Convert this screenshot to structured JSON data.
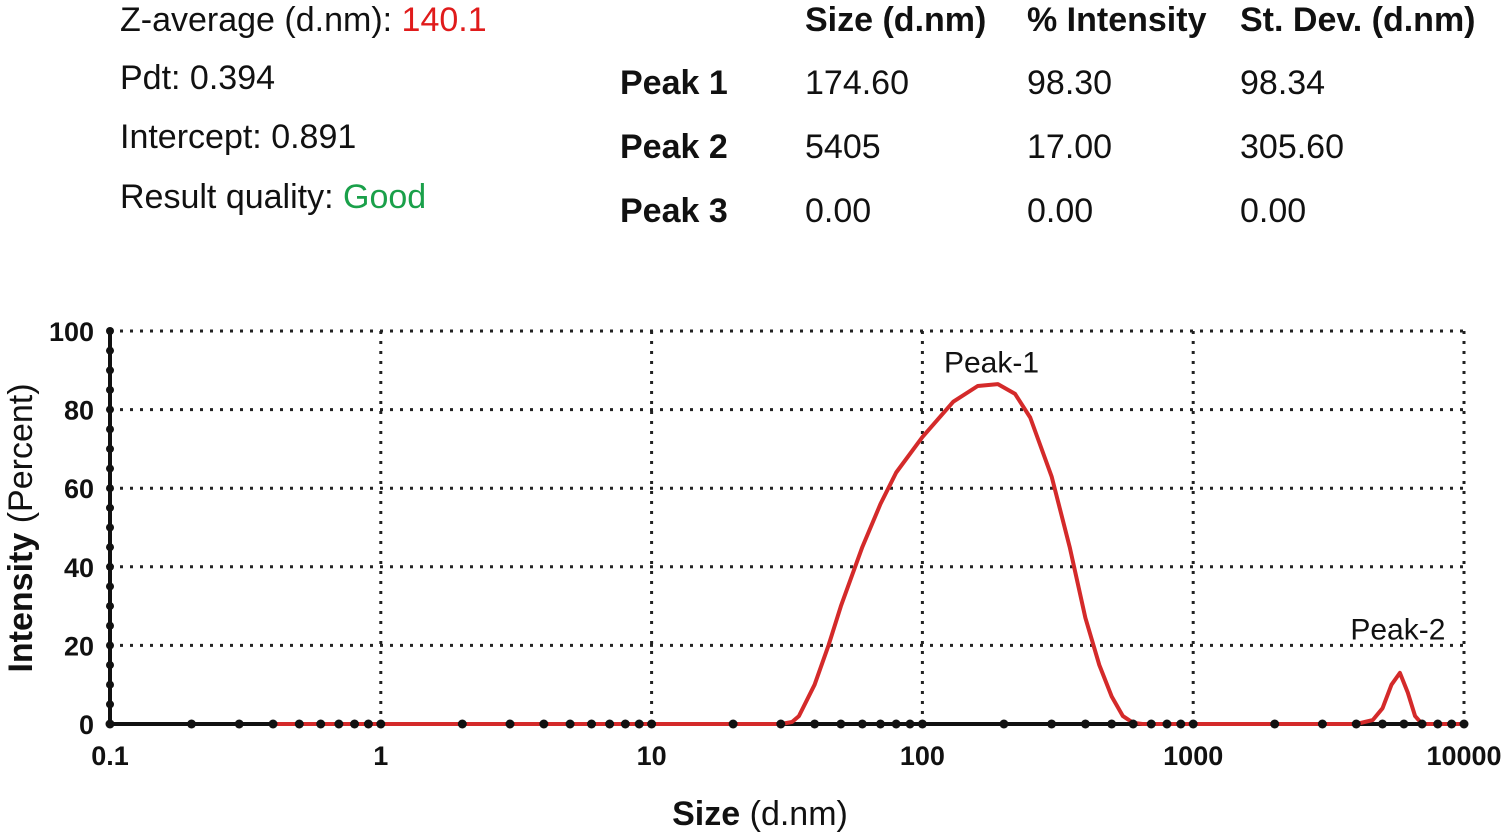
{
  "summary": {
    "z_average_label": "Z-average (d.nm): ",
    "z_average_value": "140.1",
    "pdi": "Pdt: 0.394",
    "intercept": "Intercept: 0.891",
    "quality_label": "Result quality: ",
    "quality_value": "Good"
  },
  "peak_table": {
    "headers": [
      "Size (d.nm)",
      "% Intensity",
      "St. Dev. (d.nm)"
    ],
    "rows": [
      {
        "label": "Peak 1",
        "size": "174.60",
        "intensity": "98.30",
        "stdev": "98.34"
      },
      {
        "label": "Peak 2",
        "size": "5405",
        "intensity": "17.00",
        "stdev": "305.60"
      },
      {
        "label": "Peak 3",
        "size": "0.00",
        "intensity": "0.00",
        "stdev": "0.00"
      }
    ]
  },
  "colors": {
    "value_red": "#e01b1b",
    "good_green": "#1aa04a",
    "curve": "#d42a2a",
    "baseline_marker": "#111111"
  },
  "chart_data": {
    "type": "line",
    "xscale": "log",
    "xlim": [
      0.1,
      10000
    ],
    "ylim": [
      0,
      100
    ],
    "xticks": [
      "0.1",
      "1",
      "10",
      "100",
      "1000",
      "10000"
    ],
    "yticks": [
      "0",
      "20",
      "40",
      "60",
      "80",
      "100"
    ],
    "xlabel_bold": "Size",
    "xlabel_rest": " (d.nm)",
    "ylabel_bold": "Intensity",
    "ylabel_rest": " (Percent)",
    "grid": true,
    "annotations": [
      {
        "text": "Peak-1",
        "x": 180,
        "y": 91
      },
      {
        "text": "Peak-2",
        "x": 5700,
        "y": 23
      }
    ],
    "series": [
      {
        "x": [
          0.4,
          30,
          33,
          35,
          40,
          45,
          50,
          60,
          70,
          80,
          100,
          130,
          160,
          190,
          220,
          250,
          300,
          350,
          400,
          450,
          500,
          550,
          600,
          650,
          4000,
          4600,
          5000,
          5400,
          5800,
          6200,
          6600,
          7000,
          10000
        ],
        "y": [
          0,
          0,
          0.5,
          2,
          10,
          20,
          30,
          45,
          56,
          64,
          73,
          82,
          86,
          86.5,
          84,
          78,
          63,
          45,
          27,
          15,
          7,
          2,
          0.3,
          0,
          0,
          1,
          4,
          10,
          13,
          8,
          2,
          0,
          0
        ]
      },
      {
        "x": [
          0.1,
          0.2,
          0.3,
          0.4,
          0.5,
          0.6,
          0.7,
          0.8,
          0.9,
          1,
          2,
          3,
          4,
          5,
          6,
          7,
          8,
          9,
          10,
          20,
          30,
          40,
          50,
          60,
          70,
          80,
          90,
          100,
          200,
          300,
          400,
          500,
          600,
          700,
          800,
          900,
          1000,
          2000,
          3000,
          4000,
          5000,
          6000,
          7000,
          8000,
          9000,
          10000
        ],
        "y": [
          0,
          0,
          0,
          0,
          0,
          0,
          0,
          0,
          0,
          0,
          0,
          0,
          0,
          0,
          0,
          0,
          0,
          0,
          0,
          0,
          0,
          0,
          0,
          0,
          0,
          0,
          0,
          0,
          0,
          0,
          0,
          0,
          0,
          0,
          0,
          0,
          0,
          0,
          0,
          0,
          0,
          0,
          0,
          0,
          0,
          0
        ]
      }
    ]
  }
}
